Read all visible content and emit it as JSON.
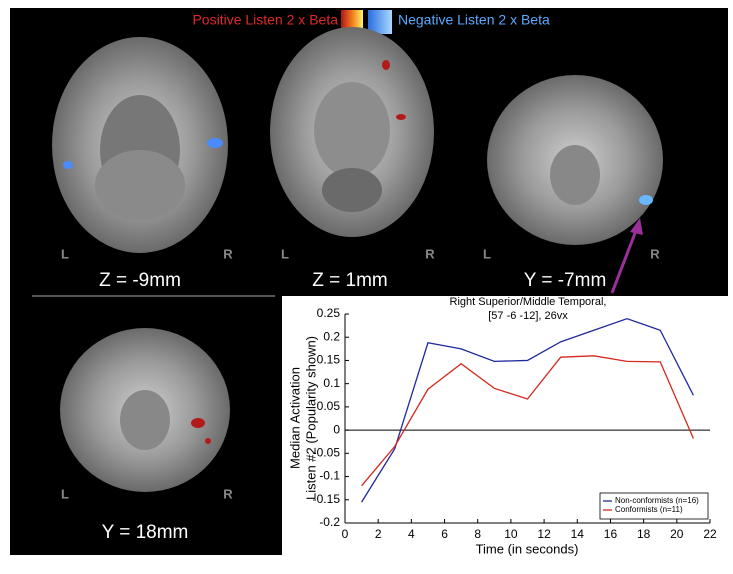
{
  "header": {
    "positive": "Positive Listen 2 x Beta",
    "negative": "Negative Listen 2 x Beta"
  },
  "panels": [
    {
      "label": "Z = -9mm",
      "left": "L",
      "right": "R"
    },
    {
      "label": "Z = 1mm",
      "left": "L",
      "right": "R"
    },
    {
      "label": "Y = -7mm",
      "left": "L",
      "right": "R"
    },
    {
      "label": "Y = 18mm",
      "left": "L",
      "right": "R"
    }
  ],
  "annotation": [
    "Right Superior/Middle Temporal,",
    "[57 -6 -12], 26vx"
  ],
  "chart_data": {
    "type": "line",
    "xlabel": "Time (in seconds)",
    "ylabel": [
      "Median Activation",
      "Listen #2 (Popularity shown)"
    ],
    "x": [
      1,
      3,
      5,
      7,
      9,
      11,
      13,
      15,
      17,
      19,
      21
    ],
    "series": [
      {
        "name": "Non-conformists (n=16)",
        "color": "#1f2a9c",
        "values": [
          -0.155,
          -0.04,
          0.188,
          0.175,
          0.148,
          0.15,
          0.19,
          0.215,
          0.24,
          0.215,
          0.075
        ]
      },
      {
        "name": "Conformists (n=11)",
        "color": "#d42a1e",
        "values": [
          -0.12,
          -0.035,
          0.088,
          0.143,
          0.09,
          0.067,
          0.157,
          0.16,
          0.148,
          0.147,
          -0.018
        ]
      }
    ],
    "xlim": [
      0,
      22
    ],
    "xticks": [
      0,
      2,
      4,
      6,
      8,
      10,
      12,
      14,
      16,
      18,
      20,
      22
    ],
    "ylim": [
      -0.2,
      0.25
    ],
    "yticks": [
      -0.2,
      -0.15,
      -0.1,
      -0.05,
      0,
      0.05,
      0.1,
      0.15,
      0.2,
      0.25
    ],
    "legend": "lower right"
  }
}
